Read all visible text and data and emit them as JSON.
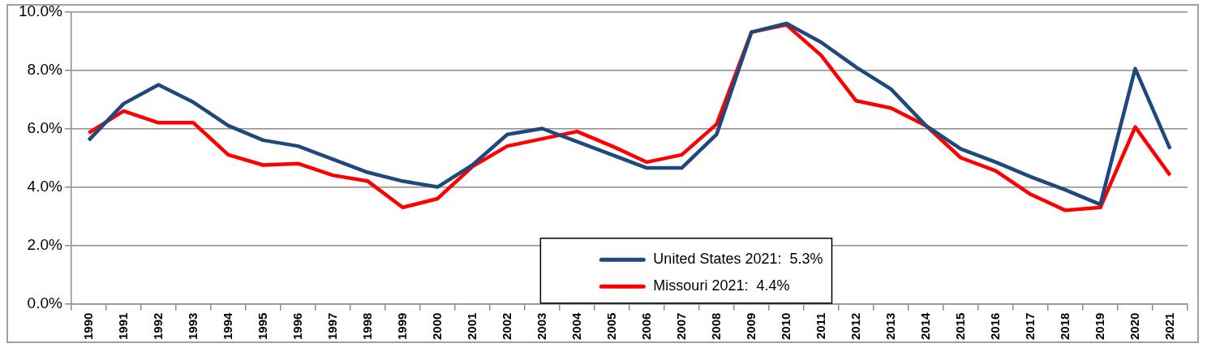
{
  "chart_data": {
    "type": "line",
    "categories": [
      "1990",
      "1991",
      "1992",
      "1993",
      "1994",
      "1995",
      "1996",
      "1997",
      "1998",
      "1999",
      "2000",
      "2001",
      "2002",
      "2003",
      "2004",
      "2005",
      "2006",
      "2007",
      "2008",
      "2009",
      "2010",
      "2011",
      "2012",
      "2013",
      "2014",
      "2015",
      "2016",
      "2017",
      "2018",
      "2019",
      "2020",
      "2021"
    ],
    "series": [
      {
        "name": "United States 2021:  5.3%",
        "color": "#1f497d",
        "values": [
          5.6,
          6.85,
          7.5,
          6.9,
          6.1,
          5.6,
          5.4,
          4.95,
          4.5,
          4.2,
          4.0,
          4.75,
          5.8,
          6.0,
          5.55,
          5.1,
          4.65,
          4.65,
          5.8,
          9.3,
          9.6,
          8.95,
          8.1,
          7.35,
          6.1,
          5.3,
          4.85,
          4.35,
          3.9,
          3.4,
          8.05,
          5.3
        ]
      },
      {
        "name": "Missouri 2021:  4.4%",
        "color": "#ff0000",
        "values": [
          5.85,
          6.6,
          6.2,
          6.2,
          5.1,
          4.75,
          4.8,
          4.4,
          4.2,
          3.3,
          3.6,
          4.7,
          5.4,
          5.65,
          5.9,
          5.4,
          4.85,
          5.1,
          6.15,
          9.3,
          9.55,
          8.5,
          6.95,
          6.7,
          6.1,
          5.0,
          4.55,
          3.75,
          3.2,
          3.3,
          6.05,
          4.4
        ]
      }
    ],
    "ylim": [
      0,
      10
    ],
    "yticks": [
      {
        "value": 0,
        "label": "0.0%"
      },
      {
        "value": 2,
        "label": "2.0%"
      },
      {
        "value": 4,
        "label": "4.0%"
      },
      {
        "value": 6,
        "label": "6.0%"
      },
      {
        "value": 8,
        "label": "8.0%"
      },
      {
        "value": 10,
        "label": "10.0%"
      }
    ],
    "grid": "y",
    "legend": "bottom",
    "marker": "none",
    "line_style": "solid"
  }
}
